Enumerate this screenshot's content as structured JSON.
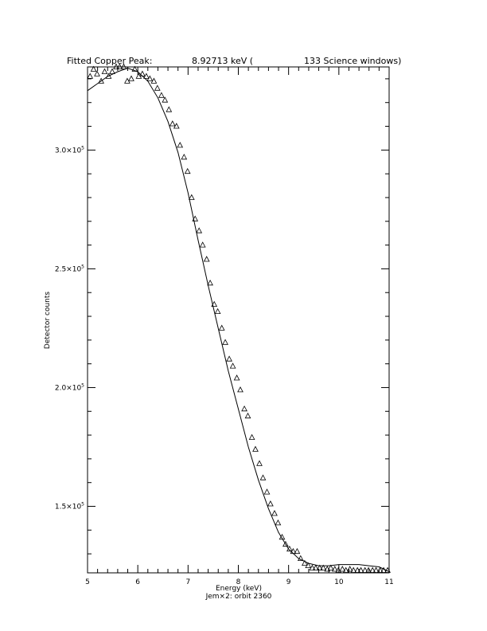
{
  "chart_data": {
    "type": "scatter",
    "title_left": "Fitted Copper Peak:",
    "title_value": "8.92713 keV (",
    "title_right": "133 Science windows)",
    "xlabel": "Energy (keV)",
    "ylabel": "Detector counts",
    "footer": "Jem×2: orbit 2360",
    "xlim": [
      5,
      11
    ],
    "ylim": [
      122000,
      335000
    ],
    "x_ticks": [
      5,
      6,
      7,
      8,
      9,
      10,
      11
    ],
    "x_tick_labels": [
      "5",
      "6",
      "7",
      "8",
      "9",
      "10",
      "11"
    ],
    "y_ticks": [
      150000,
      200000,
      250000,
      300000
    ],
    "y_tick_labels": [
      {
        "mant": "1.5",
        "exp": "5"
      },
      {
        "mant": "2.0",
        "exp": "5"
      },
      {
        "mant": "2.5",
        "exp": "5"
      },
      {
        "mant": "3.0",
        "exp": "5"
      }
    ],
    "series": [
      {
        "marker": "triangle",
        "x": [
          5.05,
          5.12,
          5.19,
          5.27,
          5.34,
          5.42,
          5.49,
          5.57,
          5.64,
          5.72,
          5.79,
          5.87,
          5.94,
          6.02,
          6.09,
          6.17,
          6.24,
          6.32,
          6.39,
          6.47,
          6.54,
          6.62,
          6.69,
          6.77,
          6.84,
          6.92,
          6.99,
          7.07,
          7.14,
          7.22,
          7.29,
          7.37,
          7.44,
          7.52,
          7.59,
          7.67,
          7.74,
          7.82,
          7.89,
          7.97,
          8.04,
          8.12,
          8.19,
          8.27,
          8.34,
          8.42,
          8.49,
          8.57,
          8.64,
          8.72,
          8.79,
          8.87,
          8.94,
          9.02,
          9.09,
          9.17,
          9.24,
          9.32,
          9.39,
          9.47,
          9.54,
          9.62,
          9.69,
          9.77,
          9.84,
          9.92,
          9.99,
          10.07,
          10.14,
          10.22,
          10.29,
          10.37,
          10.44,
          10.52,
          10.59,
          10.67,
          10.74,
          10.82,
          10.89,
          10.97
        ],
        "y": [
          331000,
          334000,
          332000,
          329000,
          333000,
          331000,
          333000,
          335000,
          335000,
          335000,
          329000,
          330000,
          334000,
          331000,
          332000,
          331000,
          330000,
          329000,
          326000,
          323000,
          321000,
          317000,
          311000,
          310000,
          302000,
          297000,
          291000,
          280000,
          271000,
          266000,
          260000,
          254000,
          244000,
          235000,
          232000,
          225000,
          219000,
          212000,
          209000,
          204000,
          199000,
          191000,
          188000,
          179000,
          174000,
          168000,
          162000,
          156000,
          151000,
          147000,
          143000,
          137000,
          134000,
          132000,
          131000,
          131000,
          128000,
          126000,
          125000,
          124000,
          124000,
          124000,
          124000,
          123500,
          124000,
          123500,
          123000,
          123500,
          123000,
          123500,
          123000,
          123000,
          123000,
          123000,
          123000,
          123000,
          123000,
          123000,
          123000,
          123000
        ]
      },
      {
        "marker": "line",
        "x": [
          5.0,
          5.2,
          5.4,
          5.6,
          5.8,
          6.0,
          6.2,
          6.4,
          6.6,
          6.8,
          7.0,
          7.2,
          7.4,
          7.6,
          7.8,
          8.0,
          8.2,
          8.4,
          8.6,
          8.8,
          9.0,
          9.2,
          9.4,
          9.6,
          9.8,
          10.0,
          10.2,
          10.4,
          10.6,
          10.8,
          11.0
        ],
        "y": [
          325000,
          328000,
          331000,
          333000,
          334500,
          333000,
          329000,
          322000,
          312000,
          299000,
          282000,
          262000,
          243000,
          225000,
          207000,
          191000,
          175000,
          161000,
          149000,
          139000,
          132000,
          128000,
          126000,
          125000,
          125000,
          125500,
          125500,
          125500,
          125000,
          124500,
          122500
        ]
      }
    ]
  }
}
